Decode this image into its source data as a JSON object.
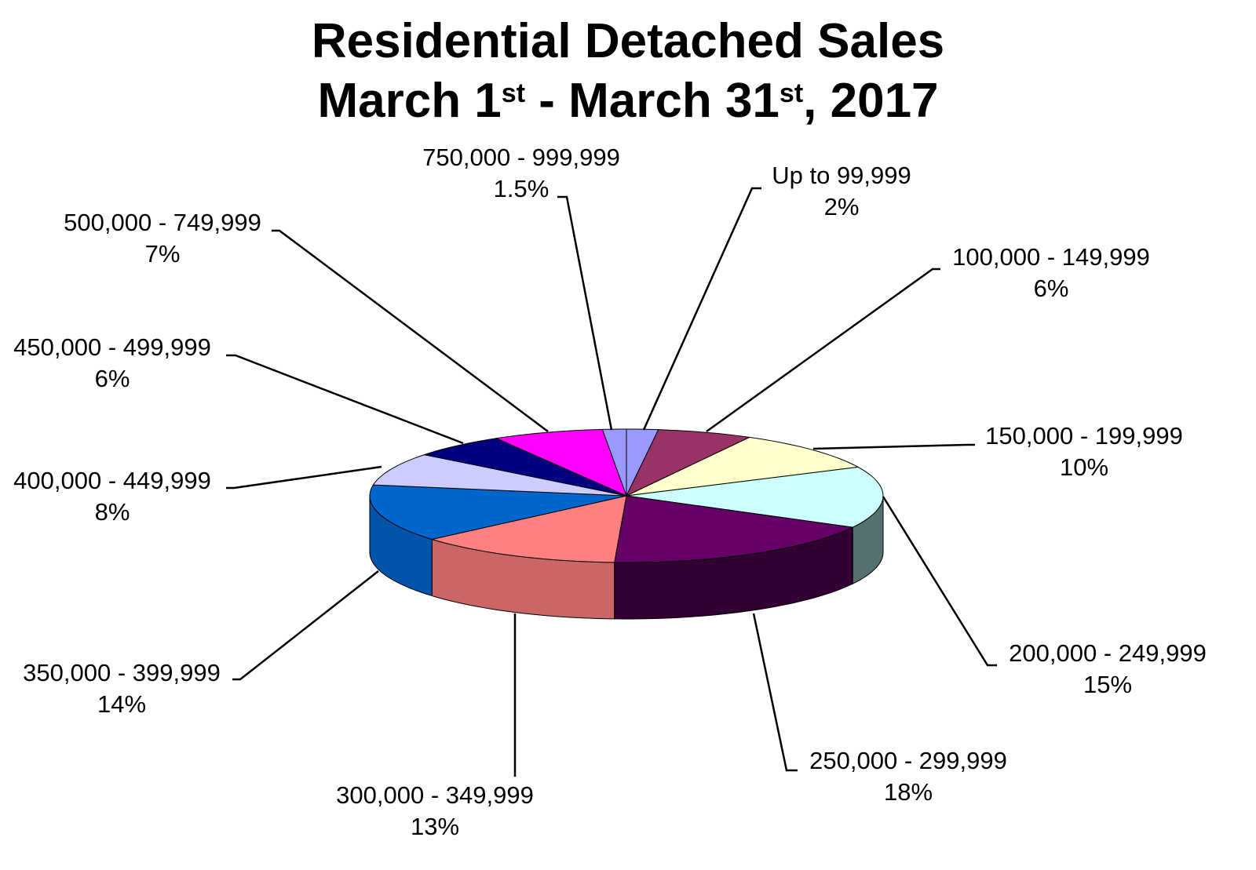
{
  "chart_data": {
    "type": "pie",
    "title_line1": "Residential Detached Sales",
    "title_line2": {
      "month_start": "March 1",
      "sup_start": "st",
      "separator": " - March 31",
      "sup_end": "st",
      "year_suffix": ", 2017"
    },
    "slices": [
      {
        "label": "Up to 99,999",
        "value_label": "2%",
        "value": 2,
        "color": "#9999ff",
        "side": "#6666cc"
      },
      {
        "label": "100,000 - 149,999",
        "value_label": "6%",
        "value": 6,
        "color": "#993366",
        "side": "#662244"
      },
      {
        "label": "150,000 - 199,999",
        "value_label": "10%",
        "value": 10,
        "color": "#ffffcc",
        "side": "#cccc99"
      },
      {
        "label": "200,000 - 249,999",
        "value_label": "15%",
        "value": 15,
        "color": "#ccffff",
        "side": "#566f6f"
      },
      {
        "label": "250,000 - 299,999",
        "value_label": "18%",
        "value": 18,
        "color": "#660066",
        "side": "#330033"
      },
      {
        "label": "300,000 - 349,999",
        "value_label": "13%",
        "value": 13,
        "color": "#ff8080",
        "side": "#cc6666"
      },
      {
        "label": "350,000 - 399,999",
        "value_label": "14%",
        "value": 14,
        "color": "#0066cc",
        "side": "#0055aa"
      },
      {
        "label": "400,000 - 449,999",
        "value_label": "8%",
        "value": 8,
        "color": "#ccccff",
        "side": "#9999cc"
      },
      {
        "label": "450,000 - 499,999",
        "value_label": "6%",
        "value": 6,
        "color": "#000080",
        "side": "#000060"
      },
      {
        "label": "500,000 - 749,999",
        "value_label": "7%",
        "value": 7,
        "color": "#ff00ff",
        "side": "#cc00cc"
      },
      {
        "label": "750,000 - 999,999",
        "value_label": "1.5%",
        "value": 1.5,
        "color": "#9999ff",
        "side": "#6666cc"
      }
    ]
  }
}
